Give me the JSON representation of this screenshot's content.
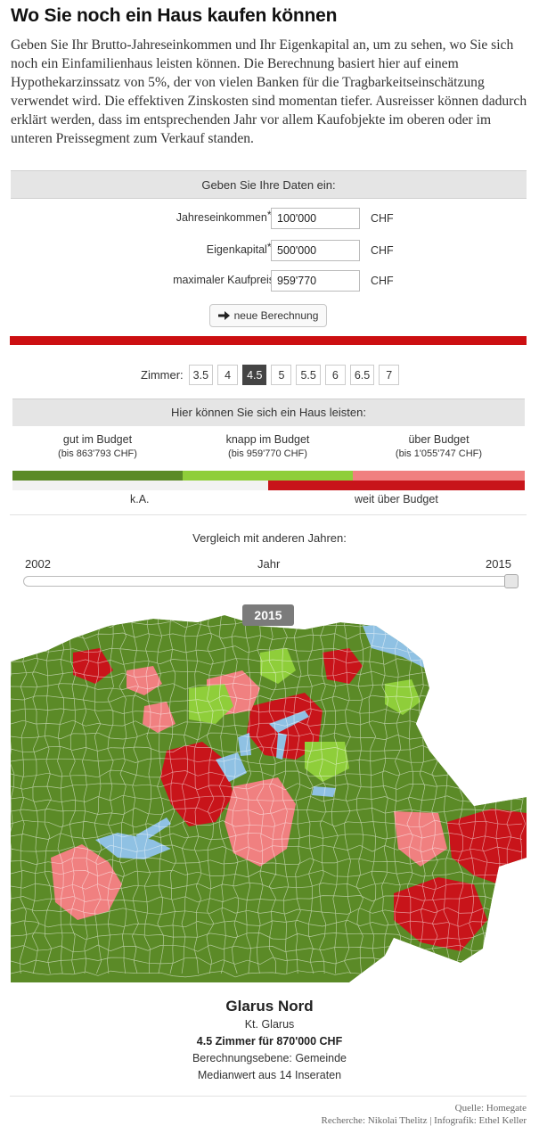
{
  "page": {
    "title": "Wo Sie noch ein Haus kaufen können",
    "intro": "Geben Sie Ihr Brutto-Jahreseinkommen und Ihr Eigenkapital an, um zu sehen, wo Sie sich noch ein Einfamilienhaus leisten können. Die Berechnung basiert hier auf einem Hypothekarzinssatz von 5%, der von vielen Banken für die Tragbarkeitseinschätzung verwendet wird. Die effektiven Zinskosten sind momentan tiefer. Ausreisser können dadurch erklärt werden, dass im entsprechenden Jahr vor allem Kaufobjekte im oberen oder im unteren Preissegment zum Verkauf standen."
  },
  "form": {
    "header": "Geben Sie Ihre Daten ein:",
    "income": {
      "label": "Jahreseinkommen",
      "required_mark": "*",
      "colon": ":",
      "value": "100'000",
      "unit": "CHF"
    },
    "equity": {
      "label": "Eigenkapital",
      "required_mark": "*",
      "colon": ":",
      "value": "500'000",
      "unit": "CHF"
    },
    "max_price": {
      "label": "maximaler Kaufpreis",
      "value": "959'770",
      "unit": "CHF"
    },
    "button_label": "neue Berechnung",
    "button_icon": "arrow-right-icon"
  },
  "rooms": {
    "label": "Zimmer:",
    "options": [
      "3.5",
      "4",
      "4.5",
      "5",
      "5.5",
      "6",
      "6.5",
      "7"
    ],
    "selected": "4.5"
  },
  "legend": {
    "header": "Hier können Sie sich ein Haus leisten:",
    "good": {
      "label": "gut im Budget",
      "sub": "(bis 863'793 CHF)",
      "color": "#5b8a27"
    },
    "tight": {
      "label": "knapp im Budget",
      "sub": "(bis 959'770 CHF)",
      "color": "#8fce3a"
    },
    "over": {
      "label": "über Budget",
      "sub": "(bis 1'055'747 CHF)",
      "color": "#f08080"
    },
    "na": {
      "label": "k.A.",
      "color": "#f2f2f2"
    },
    "far_over": {
      "label": "weit über Budget",
      "color": "#c8141a"
    }
  },
  "year_compare": {
    "title": "Vergleich mit anderen Jahren:",
    "start": "2002",
    "axis_label": "Jahr",
    "end": "2015",
    "selected": "2015",
    "slider_fraction": 1.0
  },
  "tooltip": {
    "municipality": "Glarus Nord",
    "canton": "Kt. Glarus",
    "price_line": "4.5 Zimmer für 870'000 CHF",
    "level": "Berechnungsebene: Gemeinde",
    "basis": "Medianwert aus 14 Inseraten"
  },
  "credits": {
    "source": "Quelle: Homegate",
    "authors": "Recherche: Nikolai Thelitz | Infografik: Ethel Keller"
  },
  "colors": {
    "lake": "#8fc1e3",
    "border_red": "#cc0f12",
    "header_grey": "#e5e5e5"
  }
}
